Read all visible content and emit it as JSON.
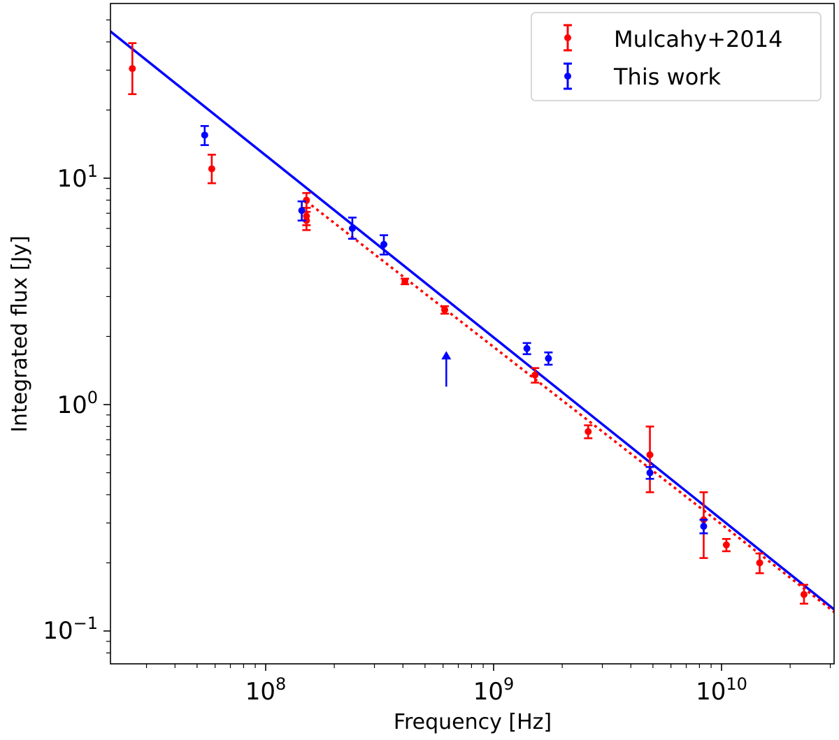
{
  "chart_data": {
    "type": "scatter",
    "title": "",
    "xlabel": "Frequency [Hz]",
    "ylabel": "Integrated flux [Jy]",
    "xscale": "log",
    "yscale": "log",
    "xlim": [
      20000000.0,
      32000000000.0
    ],
    "ylim": [
      0.08,
      60
    ],
    "x_ticks": [
      {
        "mantissa": "10",
        "exponent": "8",
        "value": 100000000.0
      },
      {
        "mantissa": "10",
        "exponent": "9",
        "value": 1000000000.0
      },
      {
        "mantissa": "10",
        "exponent": "10",
        "value": 10000000000.0
      }
    ],
    "y_ticks": [
      {
        "mantissa": "10",
        "exponent": "−1",
        "value": 0.1
      },
      {
        "mantissa": "10",
        "exponent": "0",
        "value": 1
      },
      {
        "mantissa": "10",
        "exponent": "1",
        "value": 10
      }
    ],
    "grid": false,
    "legend_position": "top-right",
    "series": [
      {
        "name": "Mulcahy+2014",
        "color": "#ff0000",
        "marker": "circle-errorbar",
        "points": [
          {
            "x": 26000000.0,
            "y": 30.5,
            "ylo": 23.5,
            "yhi": 39.5
          },
          {
            "x": 58000000.0,
            "y": 11.0,
            "ylo": 9.5,
            "yhi": 12.7
          },
          {
            "x": 151000000.0,
            "y": 8.0,
            "ylo": 7.4,
            "yhi": 8.6
          },
          {
            "x": 151000000.0,
            "y": 6.5,
            "ylo": 5.9,
            "yhi": 7.1
          },
          {
            "x": 151000000.0,
            "y": 6.8,
            "ylo": 6.2,
            "yhi": 7.4
          },
          {
            "x": 408000000.0,
            "y": 3.5,
            "ylo": 3.4,
            "yhi": 3.6
          },
          {
            "x": 610000000.0,
            "y": 2.62,
            "ylo": 2.52,
            "yhi": 2.72
          },
          {
            "x": 1520000000.0,
            "y": 1.35,
            "ylo": 1.25,
            "yhi": 1.45
          },
          {
            "x": 2600000000.0,
            "y": 0.76,
            "ylo": 0.71,
            "yhi": 0.81
          },
          {
            "x": 4850000000.0,
            "y": 0.6,
            "ylo": 0.41,
            "yhi": 0.8
          },
          {
            "x": 8350000000.0,
            "y": 0.31,
            "ylo": 0.21,
            "yhi": 0.41
          },
          {
            "x": 10500000000.0,
            "y": 0.24,
            "ylo": 0.225,
            "yhi": 0.255
          },
          {
            "x": 14700000000.0,
            "y": 0.2,
            "ylo": 0.18,
            "yhi": 0.22
          },
          {
            "x": 23000000000.0,
            "y": 0.145,
            "ylo": 0.132,
            "yhi": 0.16
          }
        ]
      },
      {
        "name": "This work",
        "color": "#0000ff",
        "marker": "circle-errorbar",
        "points": [
          {
            "x": 54000000.0,
            "y": 15.5,
            "ylo": 14.0,
            "yhi": 17.0
          },
          {
            "x": 144000000.0,
            "y": 7.2,
            "ylo": 6.5,
            "yhi": 7.9
          },
          {
            "x": 240000000.0,
            "y": 6.0,
            "ylo": 5.4,
            "yhi": 6.7
          },
          {
            "x": 330000000.0,
            "y": 5.1,
            "ylo": 4.6,
            "yhi": 5.6
          },
          {
            "x": 1400000000.0,
            "y": 1.77,
            "ylo": 1.67,
            "yhi": 1.87
          },
          {
            "x": 1740000000.0,
            "y": 1.6,
            "ylo": 1.5,
            "yhi": 1.7
          },
          {
            "x": 4850000000.0,
            "y": 0.5,
            "ylo": 0.47,
            "yhi": 0.53
          },
          {
            "x": 8350000000.0,
            "y": 0.29,
            "ylo": 0.27,
            "yhi": 0.31
          }
        ]
      }
    ],
    "lower_limit": {
      "color": "#0000ff",
      "x": 620000000.0,
      "y": 1.2,
      "y_arrow_tip": 1.7
    },
    "fits": [
      {
        "color": "#0000ff",
        "style": "solid",
        "points": [
          [
            20000000.0,
            46.0
          ],
          [
            32000000000.0,
            0.122
          ]
        ]
      },
      {
        "color": "#ff0000",
        "style": "dotted",
        "points": [
          [
            151000000.0,
            7.9
          ],
          [
            32000000000.0,
            0.119
          ]
        ]
      }
    ]
  }
}
